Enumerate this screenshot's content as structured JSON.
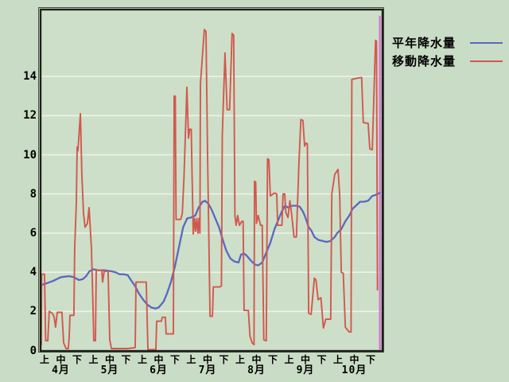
{
  "legend": {
    "items": [
      {
        "label": "平年降水量",
        "color": "#5a68c0"
      },
      {
        "label": "移動降水量",
        "color": "#d2584e"
      }
    ]
  },
  "chart_data": {
    "type": "line",
    "title": "",
    "xlabel": "",
    "ylabel": "",
    "ylim": [
      0,
      17.4
    ],
    "yticks": [
      0,
      2,
      4,
      6,
      8,
      10,
      12,
      14
    ],
    "grid": true,
    "legend_position": "top-right",
    "x_axis": {
      "months": [
        "4月",
        "5月",
        "6月",
        "7月",
        "8月",
        "9月",
        "10月"
      ],
      "periods": [
        "上",
        "中",
        "下"
      ]
    },
    "colors": {
      "background": "#c9dcc5",
      "plot_background": "#cddfc8",
      "grid": "#edf2e9",
      "frame": "#1b211b",
      "cursor": "#d97ad9"
    },
    "cursor": {
      "name": "current-period-marker",
      "x": 20.57,
      "from": 0.05,
      "to": 17.1
    },
    "series": [
      {
        "name": "平年降水量",
        "color": "#5a68c0",
        "width": 2.3,
        "points": [
          [
            -0.2,
            3.35
          ],
          [
            0,
            3.4
          ],
          [
            0.5,
            3.55
          ],
          [
            1.0,
            3.75
          ],
          [
            1.5,
            3.8
          ],
          [
            1.8,
            3.75
          ],
          [
            2.1,
            3.6
          ],
          [
            2.35,
            3.65
          ],
          [
            2.55,
            3.8
          ],
          [
            2.75,
            4.05
          ],
          [
            3.0,
            4.15
          ],
          [
            3.3,
            4.1
          ],
          [
            3.7,
            4.1
          ],
          [
            4.1,
            4.05
          ],
          [
            4.35,
            4.0
          ],
          [
            4.6,
            3.9
          ],
          [
            4.85,
            3.9
          ],
          [
            5.1,
            3.85
          ],
          [
            5.3,
            3.6
          ],
          [
            5.55,
            3.3
          ],
          [
            5.8,
            2.9
          ],
          [
            6.05,
            2.6
          ],
          [
            6.3,
            2.35
          ],
          [
            6.55,
            2.2
          ],
          [
            6.8,
            2.15
          ],
          [
            7.0,
            2.2
          ],
          [
            7.3,
            2.5
          ],
          [
            7.5,
            2.9
          ],
          [
            7.75,
            3.5
          ],
          [
            8.0,
            4.3
          ],
          [
            8.25,
            5.3
          ],
          [
            8.5,
            6.3
          ],
          [
            8.75,
            6.75
          ],
          [
            9.0,
            6.8
          ],
          [
            9.25,
            6.9
          ],
          [
            9.45,
            7.3
          ],
          [
            9.7,
            7.6
          ],
          [
            9.85,
            7.65
          ],
          [
            10.05,
            7.5
          ],
          [
            10.25,
            7.2
          ],
          [
            10.45,
            6.8
          ],
          [
            10.7,
            6.3
          ],
          [
            10.95,
            5.6
          ],
          [
            11.15,
            5.1
          ],
          [
            11.4,
            4.7
          ],
          [
            11.65,
            4.55
          ],
          [
            11.9,
            4.5
          ],
          [
            12.05,
            4.9
          ],
          [
            12.25,
            4.95
          ],
          [
            12.4,
            4.85
          ],
          [
            12.65,
            4.6
          ],
          [
            12.9,
            4.4
          ],
          [
            13.1,
            4.35
          ],
          [
            13.35,
            4.5
          ],
          [
            13.6,
            5.0
          ],
          [
            13.85,
            5.5
          ],
          [
            14.1,
            6.2
          ],
          [
            14.35,
            6.7
          ],
          [
            14.55,
            7.1
          ],
          [
            14.75,
            7.4
          ],
          [
            14.95,
            7.3
          ],
          [
            15.2,
            7.4
          ],
          [
            15.45,
            7.4
          ],
          [
            15.65,
            7.35
          ],
          [
            15.85,
            7.1
          ],
          [
            16.0,
            6.8
          ],
          [
            16.2,
            6.3
          ],
          [
            16.35,
            6.15
          ],
          [
            16.55,
            5.8
          ],
          [
            16.8,
            5.65
          ],
          [
            17.05,
            5.6
          ],
          [
            17.3,
            5.55
          ],
          [
            17.55,
            5.6
          ],
          [
            17.8,
            5.8
          ],
          [
            17.95,
            6.0
          ],
          [
            18.2,
            6.2
          ],
          [
            18.45,
            6.6
          ],
          [
            18.7,
            6.9
          ],
          [
            18.9,
            7.25
          ],
          [
            19.1,
            7.4
          ],
          [
            19.35,
            7.6
          ],
          [
            19.6,
            7.6
          ],
          [
            19.85,
            7.65
          ],
          [
            20.1,
            7.9
          ],
          [
            20.3,
            7.95
          ],
          [
            20.55,
            8.05
          ]
        ]
      },
      {
        "name": "移動降水量",
        "color": "#d2584e",
        "width": 1.9,
        "points": [
          [
            -0.2,
            0.3
          ],
          [
            -0.18,
            3.9
          ],
          [
            0,
            3.9
          ],
          [
            0.07,
            0.5
          ],
          [
            0.2,
            0.5
          ],
          [
            0.29,
            2.0
          ],
          [
            0.49,
            1.9
          ],
          [
            0.59,
            1.7
          ],
          [
            0.68,
            1.2
          ],
          [
            0.78,
            1.95
          ],
          [
            1.07,
            1.95
          ],
          [
            1.17,
            0.4
          ],
          [
            1.32,
            0.1
          ],
          [
            1.46,
            0.1
          ],
          [
            1.51,
            0.7
          ],
          [
            1.56,
            1.8
          ],
          [
            1.8,
            1.8
          ],
          [
            1.85,
            5.2
          ],
          [
            1.95,
            7.6
          ],
          [
            2.0,
            10.4
          ],
          [
            2.05,
            10.2
          ],
          [
            2.2,
            12.1
          ],
          [
            2.29,
            9.0
          ],
          [
            2.39,
            7.0
          ],
          [
            2.49,
            6.3
          ],
          [
            2.63,
            6.5
          ],
          [
            2.73,
            7.3
          ],
          [
            2.88,
            5.2
          ],
          [
            2.98,
            2.0
          ],
          [
            3.02,
            0.5
          ],
          [
            3.12,
            0.5
          ],
          [
            3.17,
            4.1
          ],
          [
            3.51,
            4.1
          ],
          [
            3.56,
            3.5
          ],
          [
            3.66,
            4.05
          ],
          [
            3.9,
            4.05
          ],
          [
            4.0,
            0.55
          ],
          [
            4.1,
            0.1
          ],
          [
            5.07,
            0.1
          ],
          [
            5.56,
            0.15
          ],
          [
            5.61,
            3.5
          ],
          [
            6.24,
            3.5
          ],
          [
            6.34,
            0.05
          ],
          [
            6.83,
            0.05
          ],
          [
            6.88,
            1.5
          ],
          [
            7.17,
            1.5
          ],
          [
            7.22,
            1.7
          ],
          [
            7.41,
            1.7
          ],
          [
            7.46,
            0.85
          ],
          [
            7.9,
            0.85
          ],
          [
            7.95,
            13.0
          ],
          [
            8.02,
            13.0
          ],
          [
            8.07,
            6.7
          ],
          [
            8.35,
            6.7
          ],
          [
            8.45,
            7.0
          ],
          [
            8.55,
            8.8
          ],
          [
            8.73,
            13.45
          ],
          [
            8.83,
            10.85
          ],
          [
            8.9,
            11.3
          ],
          [
            9.0,
            11.3
          ],
          [
            9.05,
            9.0
          ],
          [
            9.12,
            5.95
          ],
          [
            9.2,
            6.75
          ],
          [
            9.27,
            6.1
          ],
          [
            9.34,
            6.75
          ],
          [
            9.41,
            6.0
          ],
          [
            9.48,
            6.75
          ],
          [
            9.53,
            6.0
          ],
          [
            9.56,
            13.6
          ],
          [
            9.8,
            16.4
          ],
          [
            9.9,
            16.3
          ],
          [
            10.0,
            10.0
          ],
          [
            10.15,
            1.75
          ],
          [
            10.3,
            1.75
          ],
          [
            10.35,
            3.25
          ],
          [
            10.75,
            3.25
          ],
          [
            10.85,
            3.3
          ],
          [
            10.9,
            11.0
          ],
          [
            11.07,
            15.2
          ],
          [
            11.2,
            12.3
          ],
          [
            11.35,
            12.3
          ],
          [
            11.5,
            16.2
          ],
          [
            11.6,
            16.1
          ],
          [
            11.68,
            6.9
          ],
          [
            11.75,
            6.4
          ],
          [
            11.85,
            6.9
          ],
          [
            11.95,
            6.4
          ],
          [
            12.1,
            6.6
          ],
          [
            12.18,
            6.6
          ],
          [
            12.24,
            2.05
          ],
          [
            12.5,
            2.05
          ],
          [
            12.6,
            0.75
          ],
          [
            12.73,
            0.4
          ],
          [
            12.85,
            0.3
          ],
          [
            12.88,
            8.65
          ],
          [
            12.95,
            8.6
          ],
          [
            13.0,
            6.5
          ],
          [
            13.1,
            6.9
          ],
          [
            13.25,
            6.4
          ],
          [
            13.35,
            6.4
          ],
          [
            13.45,
            0.55
          ],
          [
            13.6,
            0.5
          ],
          [
            13.68,
            9.8
          ],
          [
            13.76,
            9.75
          ],
          [
            13.85,
            7.9
          ],
          [
            14.1,
            8.05
          ],
          [
            14.24,
            8.0
          ],
          [
            14.3,
            6.4
          ],
          [
            14.56,
            6.4
          ],
          [
            14.63,
            8.0
          ],
          [
            14.73,
            8.0
          ],
          [
            14.8,
            7.05
          ],
          [
            14.93,
            6.8
          ],
          [
            15.05,
            7.65
          ],
          [
            15.15,
            7.0
          ],
          [
            15.3,
            5.8
          ],
          [
            15.45,
            5.8
          ],
          [
            15.6,
            9.5
          ],
          [
            15.72,
            11.8
          ],
          [
            15.85,
            11.75
          ],
          [
            15.95,
            10.45
          ],
          [
            16.05,
            10.6
          ],
          [
            16.12,
            10.55
          ],
          [
            16.2,
            1.9
          ],
          [
            16.35,
            1.85
          ],
          [
            16.55,
            3.7
          ],
          [
            16.65,
            3.6
          ],
          [
            16.78,
            2.6
          ],
          [
            16.95,
            2.7
          ],
          [
            17.1,
            1.15
          ],
          [
            17.25,
            1.6
          ],
          [
            17.55,
            1.6
          ],
          [
            17.62,
            8.0
          ],
          [
            17.8,
            9.0
          ],
          [
            18.0,
            9.25
          ],
          [
            18.1,
            8.0
          ],
          [
            18.2,
            4.0
          ],
          [
            18.32,
            3.95
          ],
          [
            18.45,
            1.2
          ],
          [
            18.68,
            0.95
          ],
          [
            18.8,
            0.95
          ],
          [
            18.85,
            13.85
          ],
          [
            19.1,
            13.9
          ],
          [
            19.45,
            13.95
          ],
          [
            19.55,
            11.65
          ],
          [
            19.85,
            11.6
          ],
          [
            19.95,
            10.3
          ],
          [
            20.1,
            10.25
          ],
          [
            20.3,
            15.85
          ],
          [
            20.36,
            15.8
          ],
          [
            20.42,
            3.1
          ]
        ]
      }
    ]
  }
}
